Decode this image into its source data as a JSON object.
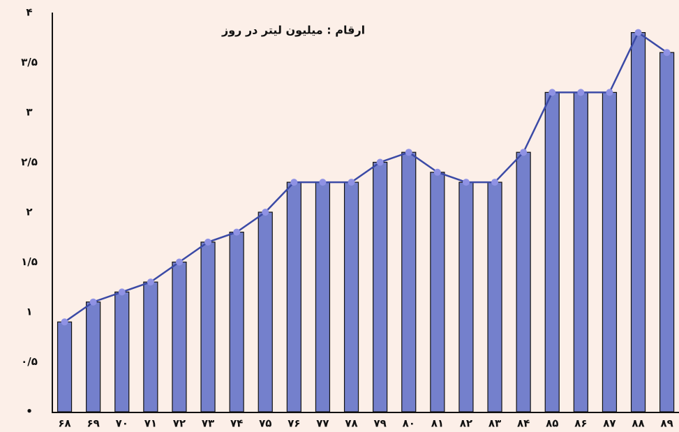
{
  "chart_data": {
    "type": "bar",
    "annotation": "ارقام : میلیون لیتر در روز",
    "categories": [
      "۶۸",
      "۶۹",
      "۷۰",
      "۷۱",
      "۷۲",
      "۷۳",
      "۷۴",
      "۷۵",
      "۷۶",
      "۷۷",
      "۷۸",
      "۷۹",
      "۸۰",
      "۸۱",
      "۸۲",
      "۸۳",
      "۸۴",
      "۸۵",
      "۸۶",
      "۸۷",
      "۸۸",
      "۸۹"
    ],
    "values": [
      0.9,
      1.1,
      1.2,
      1.3,
      1.5,
      1.7,
      1.8,
      2.0,
      2.3,
      2.3,
      2.3,
      2.5,
      2.6,
      2.4,
      2.3,
      2.3,
      2.6,
      3.2,
      3.2,
      3.2,
      3.8,
      3.6
    ],
    "color": "#7480cc",
    "line_color": "#3b4aa6",
    "marker_color": "#8f92e4",
    "ylim": [
      0,
      4
    ],
    "yticks": [
      {
        "value": 0,
        "label": "•"
      },
      {
        "value": 0.5,
        "label": "۰/۵"
      },
      {
        "value": 1,
        "label": "۱"
      },
      {
        "value": 1.5,
        "label": "۱/۵"
      },
      {
        "value": 2,
        "label": "۲"
      },
      {
        "value": 2.5,
        "label": "۲/۵"
      },
      {
        "value": 3,
        "label": "۳"
      },
      {
        "value": 3.5,
        "label": "۳/۵"
      },
      {
        "value": 4,
        "label": "۴"
      }
    ]
  }
}
